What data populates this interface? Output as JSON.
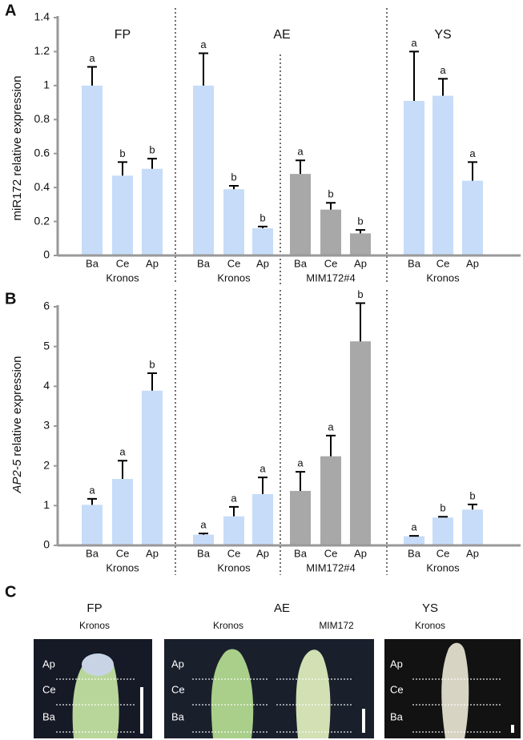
{
  "chart_data": [
    {
      "type": "bar",
      "panel": "A",
      "ylabel": "miR172 relative expression",
      "stages": [
        "FP",
        "AE",
        "YS"
      ],
      "ylim": [
        0,
        1.4
      ],
      "yticks": [
        0,
        0.2,
        0.4,
        0.6,
        0.8,
        1,
        1.2,
        1.4
      ],
      "groups": [
        {
          "genotype": "Kronos",
          "color": "#c6dcf8",
          "categories": [
            "Ba",
            "Ce",
            "Ap"
          ],
          "values": [
            1.0,
            0.47,
            0.51
          ],
          "errors": [
            0.11,
            0.08,
            0.06
          ],
          "letters": [
            "a",
            "b",
            "b"
          ]
        },
        {
          "genotype": "Kronos",
          "color": "#c6dcf8",
          "categories": [
            "Ba",
            "Ce",
            "Ap"
          ],
          "values": [
            1.0,
            0.39,
            0.16
          ],
          "errors": [
            0.19,
            0.02,
            0.01
          ],
          "letters": [
            "a",
            "b",
            "b"
          ]
        },
        {
          "genotype": "MIM172#4",
          "color": "#a8a8a8",
          "categories": [
            "Ba",
            "Ce",
            "Ap"
          ],
          "values": [
            0.48,
            0.27,
            0.13
          ],
          "errors": [
            0.08,
            0.04,
            0.02
          ],
          "letters": [
            "a",
            "b",
            "b"
          ]
        },
        {
          "genotype": "Kronos",
          "color": "#c6dcf8",
          "categories": [
            "Ba",
            "Ce",
            "Ap"
          ],
          "values": [
            0.91,
            0.94,
            0.44
          ],
          "errors": [
            0.29,
            0.1,
            0.11
          ],
          "letters": [
            "a",
            "a",
            "a"
          ]
        }
      ]
    },
    {
      "type": "bar",
      "panel": "B",
      "ylabel_gene": "AP2-5",
      "ylabel": "relative expression",
      "ylim": [
        0,
        6
      ],
      "yticks": [
        0,
        1,
        2,
        3,
        4,
        5,
        6
      ],
      "groups": [
        {
          "genotype": "Kronos",
          "color": "#c6dcf8",
          "categories": [
            "Ba",
            "Ce",
            "Ap"
          ],
          "values": [
            1.02,
            1.67,
            3.89
          ],
          "errors": [
            0.15,
            0.46,
            0.44
          ],
          "letters": [
            "a",
            "a",
            "b"
          ]
        },
        {
          "genotype": "Kronos",
          "color": "#c6dcf8",
          "categories": [
            "Ba",
            "Ce",
            "Ap"
          ],
          "values": [
            0.27,
            0.73,
            1.29
          ],
          "errors": [
            0.03,
            0.24,
            0.42
          ],
          "letters": [
            "a",
            "a",
            "a"
          ]
        },
        {
          "genotype": "MIM172#4",
          "color": "#a8a8a8",
          "categories": [
            "Ba",
            "Ce",
            "Ap"
          ],
          "values": [
            1.37,
            2.24,
            5.13
          ],
          "errors": [
            0.48,
            0.52,
            0.96
          ],
          "letters": [
            "a",
            "a",
            "b"
          ]
        },
        {
          "genotype": "Kronos",
          "color": "#c6dcf8",
          "categories": [
            "Ba",
            "Ce",
            "Ap"
          ],
          "values": [
            0.23,
            0.7,
            0.9
          ],
          "errors": [
            0.01,
            0.02,
            0.13
          ],
          "letters": [
            "a",
            "b",
            "b"
          ]
        }
      ]
    }
  ],
  "photo_panel": {
    "panel": "C",
    "stages": [
      {
        "stage": "FP",
        "genotypes": [
          "Kronos"
        ]
      },
      {
        "stage": "AE",
        "genotypes": [
          "Kronos",
          "MIM172"
        ]
      },
      {
        "stage": "YS",
        "genotypes": [
          "Kronos"
        ]
      }
    ],
    "photos": [
      {
        "zones": [
          "Ap",
          "Ce",
          "Ba"
        ]
      },
      {
        "zones": [
          "Ap",
          "Ce",
          "Ba"
        ]
      },
      {
        "zones": [
          "Ap",
          "Ce",
          "Ba"
        ]
      }
    ]
  }
}
